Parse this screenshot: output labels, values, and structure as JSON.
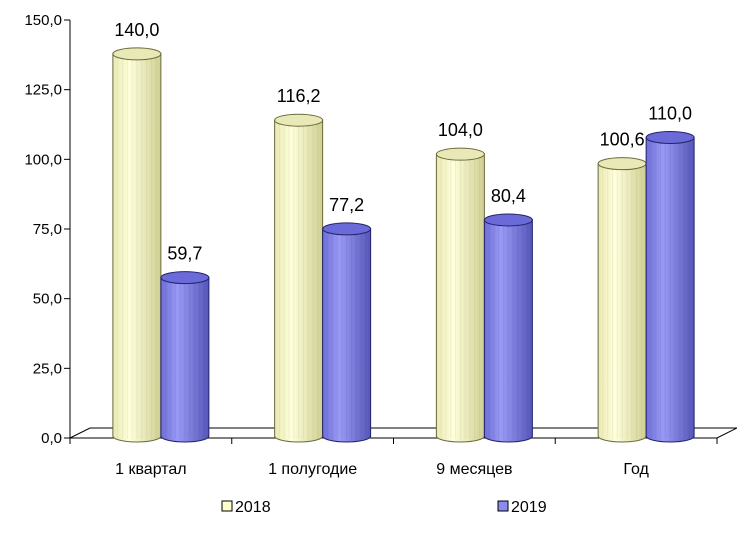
{
  "chart_data": {
    "type": "bar",
    "categories": [
      "1 квартал",
      "1 полугодие",
      "9 месяцев",
      "Год"
    ],
    "series": [
      {
        "name": "2018",
        "values": [
          140.0,
          116.2,
          104.0,
          100.6
        ],
        "labels": [
          "140,0",
          "116,2",
          "104,0",
          "100,6"
        ],
        "color": "#FFFFCC",
        "edge": "#6b6b3a"
      },
      {
        "name": "2019",
        "values": [
          59.7,
          77.2,
          80.4,
          110.0
        ],
        "labels": [
          "59,7",
          "77,2",
          "80,4",
          "110,0"
        ],
        "color": "#8A8AF0",
        "edge": "#23236b"
      }
    ],
    "yticks": [
      0,
      25,
      50,
      75,
      100,
      125,
      150
    ],
    "ytick_labels": [
      "0,0",
      "25,0",
      "50,0",
      "75,0",
      "100,0",
      "125,0",
      "150,0"
    ],
    "ylim": [
      0,
      150
    ],
    "title": "",
    "xlabel": "",
    "ylabel": "",
    "grid": false,
    "legend_position": "bottom",
    "style": "3d-cylinder"
  }
}
